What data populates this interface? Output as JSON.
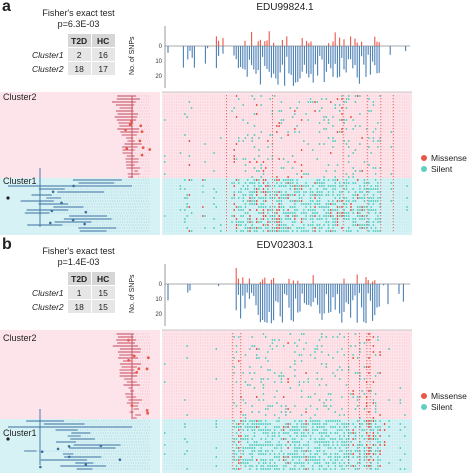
{
  "colors": {
    "missense": "#e8584a",
    "silent": "#5fcfc0",
    "bar_silent": "#4a7fb5",
    "cluster2_bg": "#fde4ea",
    "cluster1_bg": "#d6f2f5",
    "tree_c1": "#3a6e9e",
    "tree_c2": "#c4495a"
  },
  "legend": {
    "missense": "Missense",
    "silent": "Silent"
  },
  "panels": [
    {
      "label": "a",
      "gene": "EDU99824.1",
      "fisher_title": "Fisher's exact test",
      "p_value": "p=6.3E-03",
      "table": {
        "headers": [
          "T2D",
          "HC"
        ],
        "rows": [
          {
            "name": "Cluster1",
            "values": [
              "2",
              "16"
            ]
          },
          {
            "name": "Cluster2",
            "values": [
              "18",
              "17"
            ]
          }
        ]
      },
      "bar_ylabel": "No. of SNPs",
      "bar_ticks": [
        "0",
        "10",
        "20"
      ],
      "cluster_labels": [
        "Cluster2",
        "Cluster1"
      ],
      "cluster2_fraction": 0.6,
      "seed": 7
    },
    {
      "label": "b",
      "gene": "EDV02303.1",
      "fisher_title": "Fisher's exact test",
      "p_value": "p=1.4E-03",
      "table": {
        "headers": [
          "T2D",
          "HC"
        ],
        "rows": [
          {
            "name": "Cluster1",
            "values": [
              "1",
              "15"
            ]
          },
          {
            "name": "Cluster2",
            "values": [
              "18",
              "15"
            ]
          }
        ]
      },
      "bar_ylabel": "No. of SNPs",
      "bar_ticks": [
        "0",
        "10",
        "20"
      ],
      "cluster_labels": [
        "Cluster2",
        "Cluster1"
      ],
      "cluster2_fraction": 0.62,
      "seed": 23
    }
  ]
}
